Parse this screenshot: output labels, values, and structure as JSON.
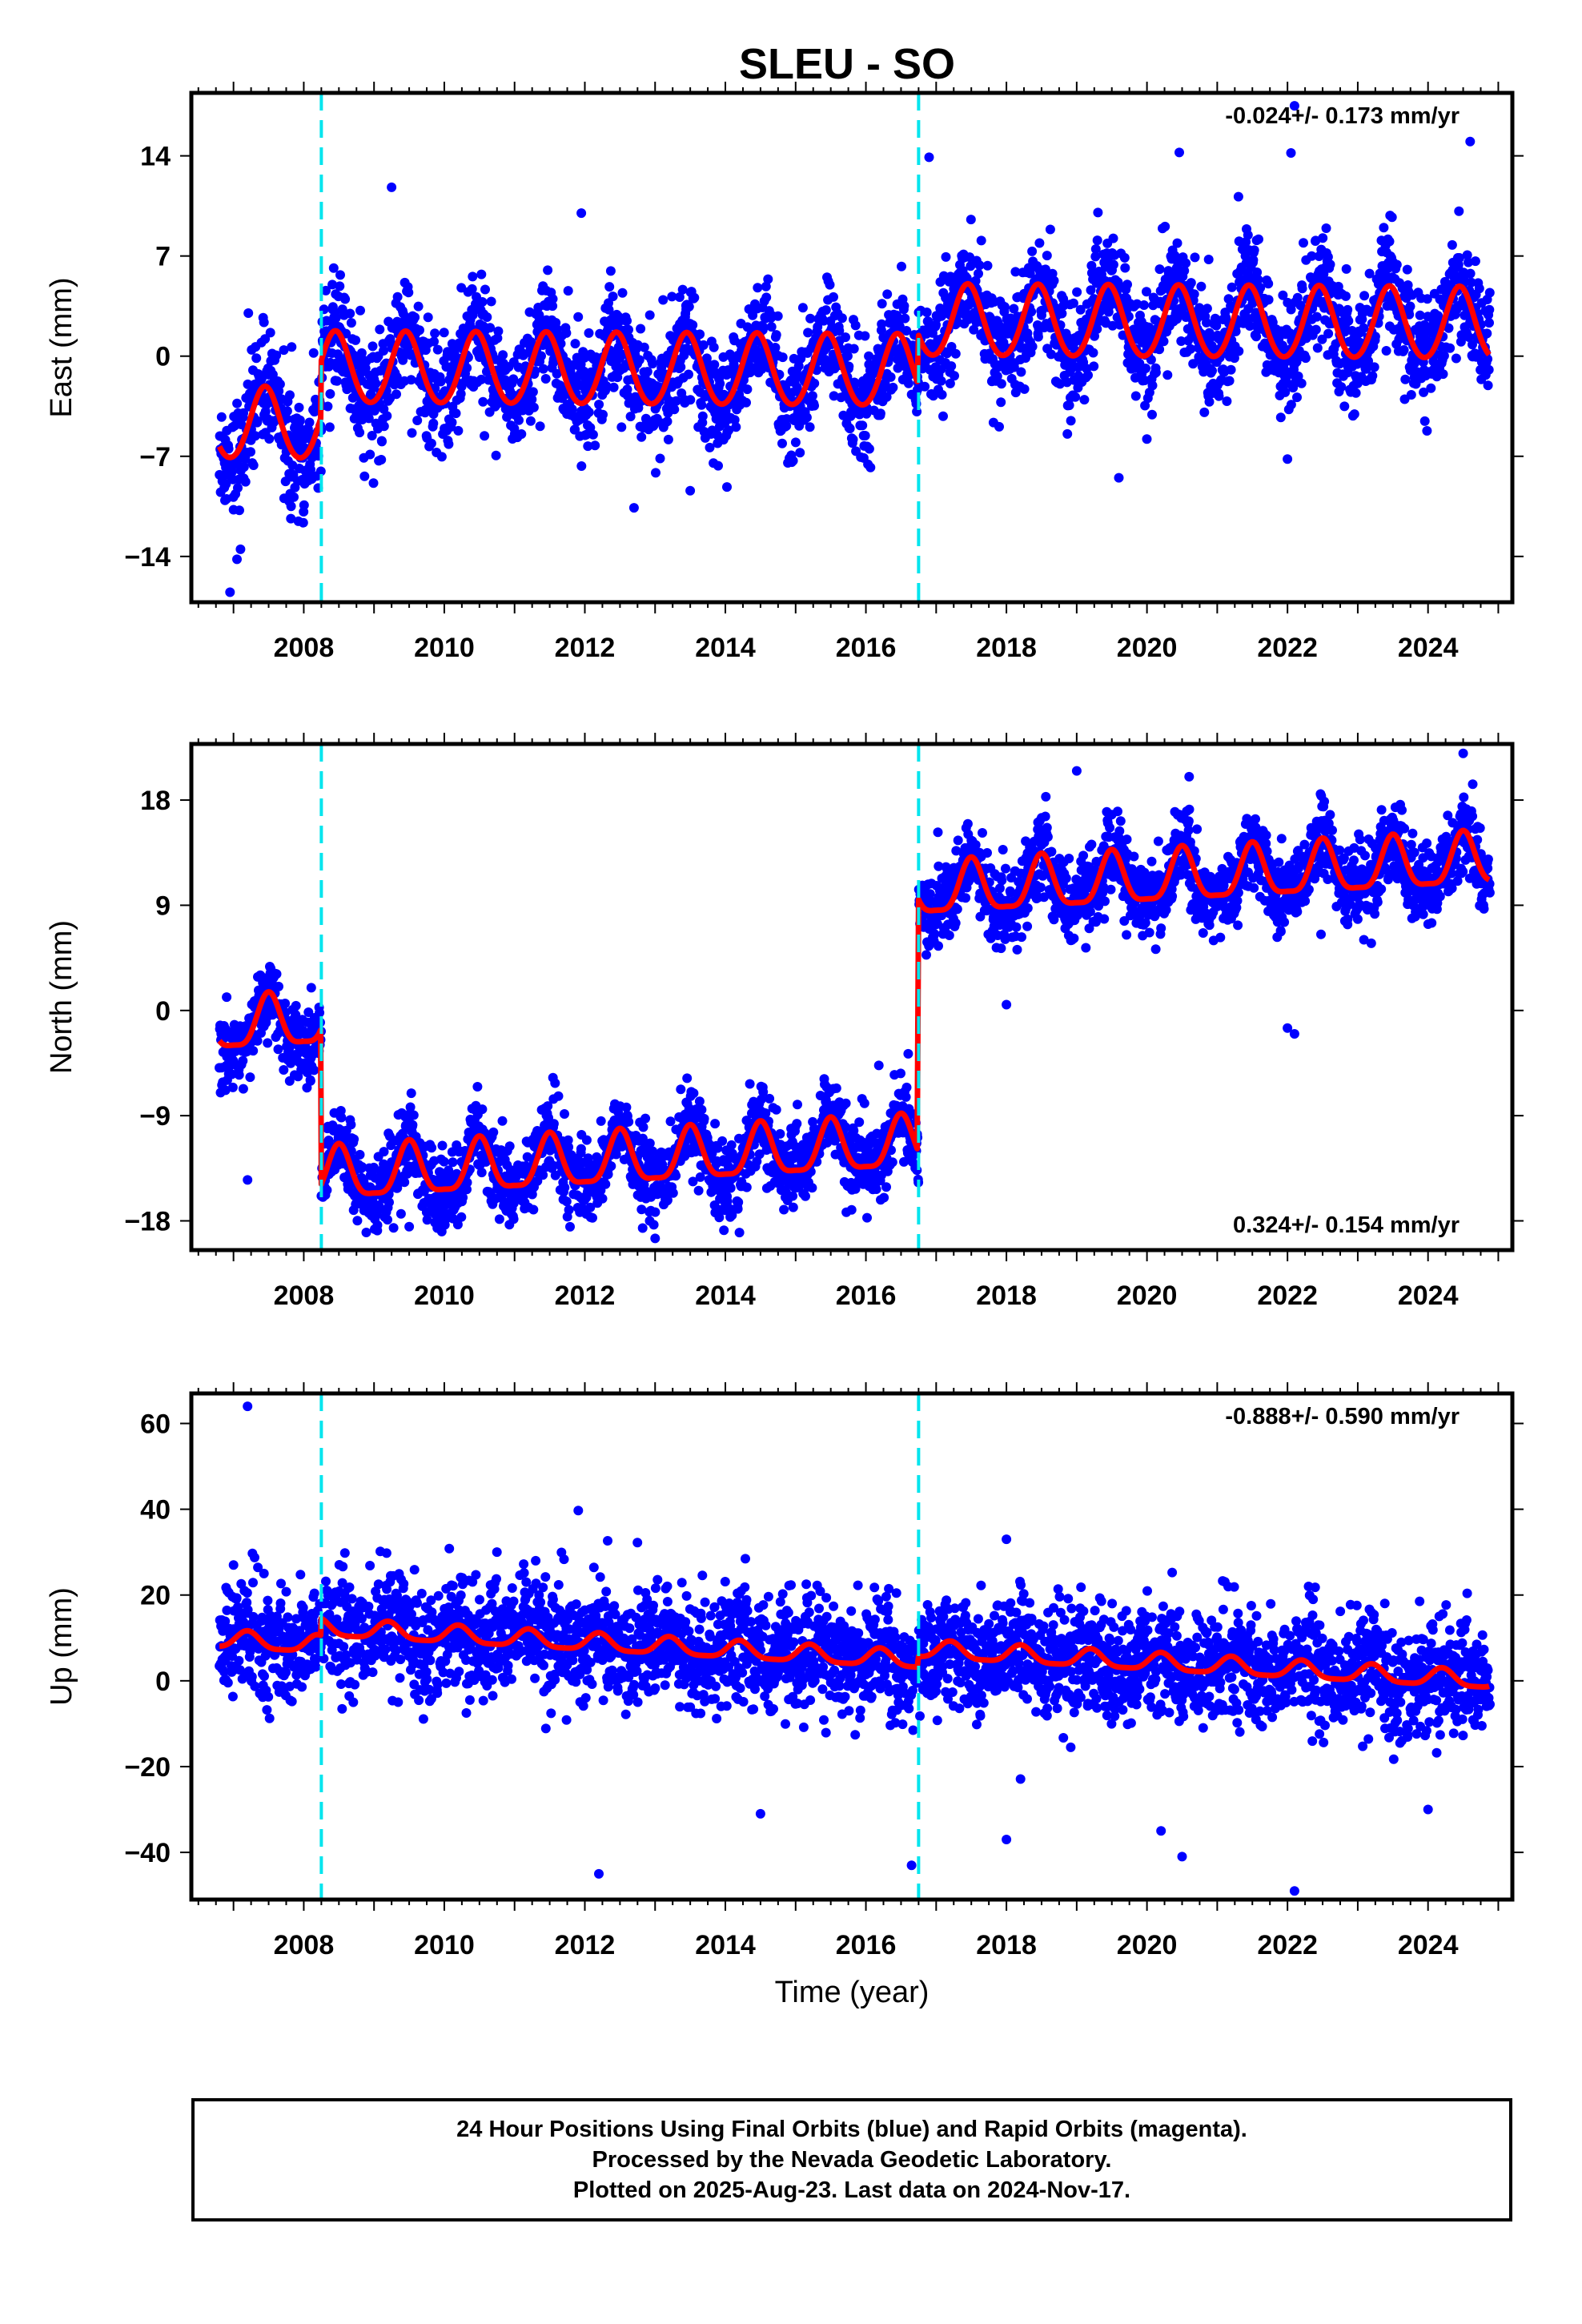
{
  "title": "SLEU - SO",
  "footer": {
    "line1": "24 Hour Positions Using Final Orbits (blue) and Rapid Orbits (magenta).",
    "line2": "Processed by the Nevada Geodetic Laboratory.",
    "line3": "Plotted on 2025-Aug-23. Last data on 2024-Nov-17."
  },
  "colors": {
    "points": "#0000ff",
    "model": "#ff0000",
    "steps": "#00e5ee",
    "frame": "#000000"
  },
  "chart_data": [
    {
      "type": "scatter",
      "ylabel": "East (mm)",
      "xlabel": "",
      "rate_label": "-0.024+/- 0.173 mm/yr",
      "rate_position": "top-right",
      "xlim": [
        2006.4,
        2025.2
      ],
      "ylim": [
        -17.2,
        18.4
      ],
      "yticks": [
        14,
        7,
        0,
        -7,
        -14
      ],
      "ytick_labels": [
        "14",
        "7",
        "0",
        "−7",
        "−14"
      ],
      "xticks": [
        2008,
        2010,
        2012,
        2014,
        2016,
        2018,
        2020,
        2022,
        2024
      ],
      "xtick_labels": [
        "2008",
        "2010",
        "2012",
        "2014",
        "2016",
        "2018",
        "2020",
        "2022",
        "2024"
      ],
      "step_lines": [
        2008.25,
        2016.75
      ],
      "data_range": [
        2006.8,
        2024.88
      ],
      "model": {
        "segments": [
          {
            "start": 2006.8,
            "end": 2008.25,
            "offset": -5.0
          },
          {
            "start": 2008.25,
            "end": 2016.75,
            "offset": -1.1
          },
          {
            "start": 2016.75,
            "end": 2024.88,
            "offset": 2.4
          }
        ],
        "trend_mm_per_yr": -0.024,
        "annual_amplitude": 2.5,
        "annual_phase": 0.45,
        "semiannual_amplitude": 0.2
      },
      "scatter_spread": 1.9,
      "outliers": [
        [
          2006.95,
          -16.5
        ],
        [
          2007.05,
          -14.2
        ],
        [
          2007.1,
          -13.5
        ],
        [
          2009.25,
          11.8
        ],
        [
          2016.9,
          13.9
        ],
        [
          2022.05,
          14.2
        ],
        [
          2022.1,
          17.5
        ],
        [
          2024.6,
          15.0
        ],
        [
          2011.95,
          10.0
        ],
        [
          2019.6,
          -8.5
        ],
        [
          2022.0,
          -7.2
        ],
        [
          2012.7,
          -10.6
        ],
        [
          2013.5,
          -9.4
        ]
      ]
    },
    {
      "type": "scatter",
      "ylabel": "North (mm)",
      "xlabel": "",
      "rate_label": "0.324+/- 0.154 mm/yr",
      "rate_position": "bottom-right",
      "xlim": [
        2006.4,
        2025.2
      ],
      "ylim": [
        -20.5,
        22.8
      ],
      "yticks": [
        18,
        9,
        0,
        -9,
        -18
      ],
      "ytick_labels": [
        "18",
        "9",
        "0",
        "−9",
        "−18"
      ],
      "xticks": [
        2008,
        2010,
        2012,
        2014,
        2016,
        2018,
        2020,
        2022,
        2024
      ],
      "xtick_labels": [
        "2008",
        "2010",
        "2012",
        "2014",
        "2016",
        "2018",
        "2020",
        "2022",
        "2024"
      ],
      "step_lines": [
        2008.25,
        2016.75
      ],
      "data_range": [
        2006.8,
        2024.88
      ],
      "model": {
        "segments": [
          {
            "start": 2006.8,
            "end": 2008.25,
            "offset": 1.5
          },
          {
            "start": 2008.25,
            "end": 2016.75,
            "offset": -11.8
          },
          {
            "start": 2016.75,
            "end": 2024.88,
            "offset": 9.8
          }
        ],
        "trend_mm_per_yr": 0.324,
        "annual_amplitude": 2.2,
        "annual_phase": 0.5,
        "semiannual_amplitude": 0.6
      },
      "scatter_spread": 1.7,
      "outliers": [
        [
          2007.2,
          -14.5
        ],
        [
          2009.5,
          -18.5
        ],
        [
          2013.0,
          -19.5
        ],
        [
          2018.0,
          0.5
        ],
        [
          2022.0,
          -1.5
        ],
        [
          2022.1,
          -2.0
        ],
        [
          2024.5,
          22.0
        ],
        [
          2019.0,
          20.5
        ],
        [
          2020.6,
          20.0
        ],
        [
          2014.2,
          -19.0
        ]
      ]
    },
    {
      "type": "scatter",
      "ylabel": "Up (mm)",
      "xlabel": "Time (year)",
      "rate_label": "-0.888+/- 0.590 mm/yr",
      "rate_position": "top-right",
      "xlim": [
        2006.4,
        2025.2
      ],
      "ylim": [
        -51,
        67
      ],
      "yticks": [
        60,
        40,
        20,
        0,
        -20,
        -40
      ],
      "ytick_labels": [
        "60",
        "40",
        "20",
        "0",
        "−20",
        "−40"
      ],
      "xticks": [
        2008,
        2010,
        2012,
        2014,
        2016,
        2018,
        2020,
        2022,
        2024
      ],
      "xtick_labels": [
        "2008",
        "2010",
        "2012",
        "2014",
        "2016",
        "2018",
        "2020",
        "2022",
        "2024"
      ],
      "step_lines": [
        2008.25,
        2016.75
      ],
      "data_range": [
        2006.8,
        2024.88
      ],
      "model": {
        "segments": [
          {
            "start": 2006.8,
            "end": 2008.25,
            "offset": 1.5
          },
          {
            "start": 2008.25,
            "end": 2016.75,
            "offset": 5.5
          },
          {
            "start": 2016.75,
            "end": 2024.88,
            "offset": 8.0
          }
        ],
        "trend_mm_per_yr": -0.888,
        "annual_amplitude": 2.0,
        "annual_phase": 0.2,
        "semiannual_amplitude": 0.5
      },
      "scatter_spread": 6.5,
      "outliers": [
        [
          2007.2,
          64
        ],
        [
          2012.2,
          -45
        ],
        [
          2022.1,
          -49
        ],
        [
          2016.65,
          -43
        ],
        [
          2018.0,
          -37
        ],
        [
          2020.5,
          -41
        ],
        [
          2024.0,
          -30
        ],
        [
          2014.5,
          -31
        ],
        [
          2018.0,
          33
        ],
        [
          2007.0,
          27
        ],
        [
          2011.3,
          28
        ],
        [
          2022.3,
          22
        ],
        [
          2020.2,
          -35
        ]
      ]
    }
  ]
}
